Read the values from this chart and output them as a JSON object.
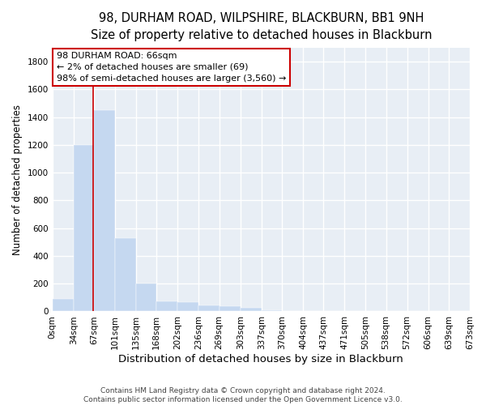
{
  "title_line1": "98, DURHAM ROAD, WILPSHIRE, BLACKBURN, BB1 9NH",
  "title_line2": "Size of property relative to detached houses in Blackburn",
  "xlabel": "Distribution of detached houses by size in Blackburn",
  "ylabel": "Number of detached properties",
  "bar_values": [
    90,
    1200,
    1450,
    530,
    200,
    75,
    65,
    45,
    35,
    25,
    10,
    5,
    2,
    1,
    0,
    0,
    0,
    0,
    0,
    0
  ],
  "bar_left_edges": [
    0,
    34,
    67,
    101,
    135,
    168,
    202,
    236,
    269,
    303,
    337,
    370,
    404,
    437,
    471,
    505,
    538,
    572,
    606,
    639
  ],
  "bar_widths_sqm": [
    34,
    33,
    34,
    34,
    33,
    34,
    34,
    33,
    34,
    34,
    33,
    34,
    33,
    34,
    34,
    33,
    34,
    34,
    33,
    34
  ],
  "xtick_labels": [
    "0sqm",
    "34sqm",
    "67sqm",
    "101sqm",
    "135sqm",
    "168sqm",
    "202sqm",
    "236sqm",
    "269sqm",
    "303sqm",
    "337sqm",
    "370sqm",
    "404sqm",
    "437sqm",
    "471sqm",
    "505sqm",
    "538sqm",
    "572sqm",
    "606sqm",
    "639sqm",
    "673sqm"
  ],
  "bar_color": "#c5d8f0",
  "vline_x": 66,
  "vline_color": "#cc0000",
  "annotation_text": "98 DURHAM ROAD: 66sqm\n← 2% of detached houses are smaller (69)\n98% of semi-detached houses are larger (3,560) →",
  "box_edge_color": "#cc0000",
  "ylim": [
    0,
    1900
  ],
  "xlim": [
    0,
    673
  ],
  "yticks": [
    0,
    200,
    400,
    600,
    800,
    1000,
    1200,
    1400,
    1600,
    1800
  ],
  "background_color": "#e8eef5",
  "grid_color": "#ffffff",
  "footer_text": "Contains HM Land Registry data © Crown copyright and database right 2024.\nContains public sector information licensed under the Open Government Licence v3.0.",
  "title_fontsize": 10.5,
  "subtitle_fontsize": 9.5,
  "xlabel_fontsize": 9.5,
  "ylabel_fontsize": 8.5,
  "tick_fontsize": 7.5,
  "annot_fontsize": 8
}
